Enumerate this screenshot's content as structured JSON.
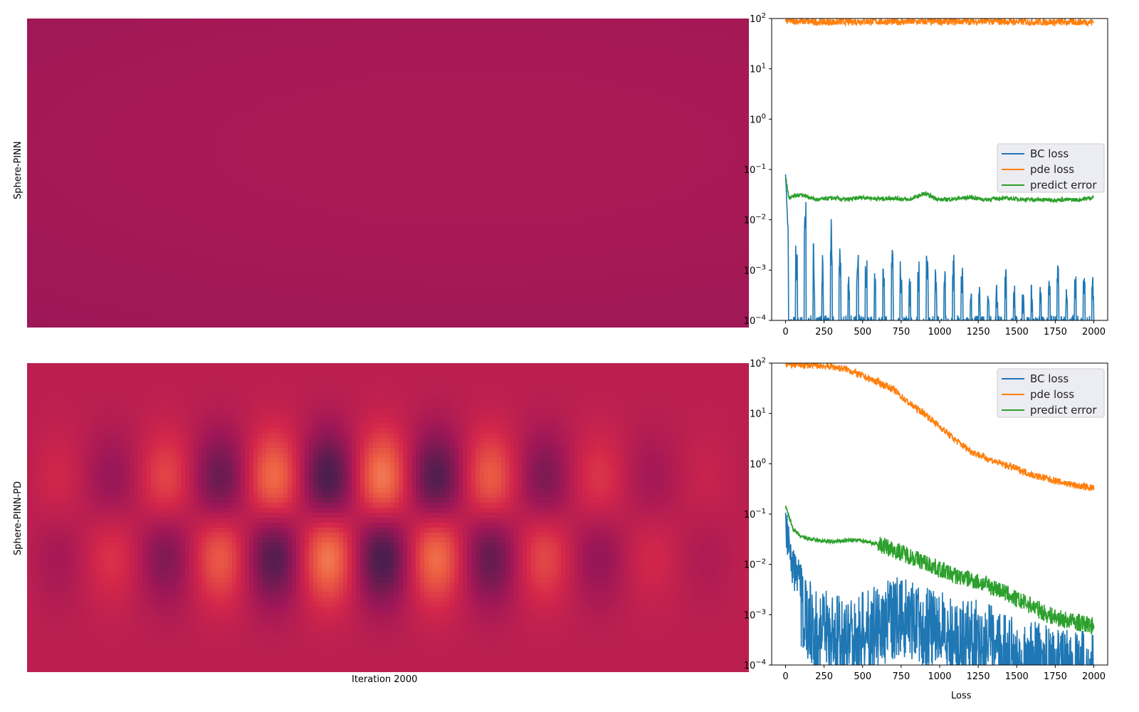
{
  "figure": {
    "row_labels": [
      "Sphere-PINN",
      "Sphere-PINN-PD"
    ],
    "heatmap_xlabel": "Iteration 2000",
    "loss_xlabel": "Loss"
  },
  "chart_data": [
    {
      "type": "heatmap",
      "title": "",
      "ylabel": "Sphere-PINN",
      "description_values": "nearly uniform field",
      "colormap": "rocket",
      "field": {
        "kind": "uniform",
        "level": 0.42,
        "variation": 0.03
      }
    },
    {
      "type": "line",
      "title": "",
      "yscale": "log",
      "xlim": [
        -90,
        2090
      ],
      "ylim": [
        0.0001,
        100
      ],
      "xticks": [
        0,
        250,
        500,
        750,
        1000,
        1250,
        1500,
        1750,
        2000
      ],
      "yticks": [
        0.0001,
        0.001,
        0.01,
        0.1,
        1,
        10,
        100
      ],
      "ytick_labels": [
        [
          "10",
          "−4"
        ],
        [
          "10",
          "−3"
        ],
        [
          "10",
          "−2"
        ],
        [
          "10",
          "−1"
        ],
        [
          "10",
          "0"
        ],
        [
          "10",
          "1"
        ],
        [
          "10",
          "2"
        ]
      ],
      "xlabel": "",
      "legend_placement": "center-right",
      "series": [
        {
          "name": "BC loss",
          "color": "#1f77b4",
          "x": [
            0,
            20,
            50,
            100,
            130,
            200,
            300,
            400,
            500,
            600,
            700,
            800,
            900,
            1000,
            1100,
            1200,
            1300,
            1400,
            1460,
            1500,
            1600,
            1700,
            1790,
            1800,
            1900,
            2000
          ],
          "y": [
            0.08,
            0.003,
            0.002,
            0.0008,
            0.009,
            0.0006,
            0.003,
            0.0004,
            0.0009,
            0.0003,
            0.0012,
            0.0003,
            0.0012,
            0.0003,
            0.0012,
            0.0003,
            0.0002,
            0.0003,
            0.0008,
            0.0002,
            0.0002,
            0.0003,
            0.0009,
            0.0002,
            0.0006,
            0.0003
          ]
        },
        {
          "name": "pde loss",
          "color": "#ff7f0e",
          "x": [
            0,
            250,
            500,
            750,
            1000,
            1250,
            1500,
            1750,
            2000
          ],
          "y": [
            90,
            85,
            88,
            86,
            87,
            88,
            86,
            85,
            85
          ]
        },
        {
          "name": "predict error",
          "color": "#2ca02c",
          "x": [
            0,
            20,
            100,
            200,
            300,
            400,
            500,
            600,
            700,
            800,
            900,
            1000,
            1100,
            1200,
            1300,
            1400,
            1500,
            1600,
            1700,
            1800,
            1900,
            2000
          ],
          "y": [
            0.075,
            0.028,
            0.032,
            0.025,
            0.027,
            0.025,
            0.028,
            0.026,
            0.027,
            0.025,
            0.033,
            0.025,
            0.026,
            0.028,
            0.025,
            0.027,
            0.026,
            0.025,
            0.025,
            0.025,
            0.025,
            0.028
          ]
        }
      ]
    },
    {
      "type": "heatmap",
      "title": "",
      "ylabel": "Sphere-PINN-PD",
      "colormap": "rocket",
      "field": {
        "kind": "checkerboard",
        "columns": 13,
        "rows": 2,
        "base_level": 0.48
      }
    },
    {
      "type": "line",
      "title": "",
      "yscale": "log",
      "xlim": [
        -90,
        2090
      ],
      "ylim": [
        0.0001,
        100
      ],
      "xticks": [
        0,
        250,
        500,
        750,
        1000,
        1250,
        1500,
        1750,
        2000
      ],
      "yticks": [
        0.0001,
        0.001,
        0.01,
        0.1,
        1,
        10,
        100
      ],
      "ytick_labels": [
        [
          "10",
          "−4"
        ],
        [
          "10",
          "−3"
        ],
        [
          "10",
          "−2"
        ],
        [
          "10",
          "−1"
        ],
        [
          "10",
          "0"
        ],
        [
          "10",
          "1"
        ],
        [
          "10",
          "2"
        ]
      ],
      "xlabel": "Loss",
      "legend_placement": "upper-right",
      "series": [
        {
          "name": "BC loss",
          "color": "#1f77b4",
          "x": [
            0,
            50,
            100,
            200,
            300,
            400,
            500,
            600,
            700,
            800,
            900,
            1000,
            1100,
            1200,
            1300,
            1400,
            1500,
            1600,
            1700,
            1800,
            1900,
            2000
          ],
          "y": [
            0.17,
            0.02,
            0.01,
            0.003,
            0.003,
            0.002,
            0.003,
            0.004,
            0.006,
            0.006,
            0.004,
            0.003,
            0.002,
            0.002,
            0.002,
            0.001,
            0.001,
            0.0008,
            0.0006,
            0.0005,
            0.0005,
            0.0005
          ]
        },
        {
          "name": "pde loss",
          "color": "#ff7f0e",
          "x": [
            0,
            100,
            200,
            300,
            400,
            500,
            600,
            700,
            800,
            900,
            1000,
            1100,
            1200,
            1300,
            1400,
            1500,
            1600,
            1700,
            1800,
            1900,
            2000
          ],
          "y": [
            95,
            92,
            90,
            85,
            75,
            55,
            42,
            30,
            16,
            10,
            5.5,
            3,
            1.8,
            1.3,
            1.0,
            0.8,
            0.6,
            0.5,
            0.42,
            0.36,
            0.33
          ]
        },
        {
          "name": "predict error",
          "color": "#2ca02c",
          "x": [
            0,
            50,
            100,
            200,
            300,
            400,
            500,
            600,
            700,
            800,
            900,
            1000,
            1100,
            1200,
            1300,
            1400,
            1500,
            1600,
            1700,
            1800,
            1900,
            2000
          ],
          "y": [
            0.14,
            0.05,
            0.035,
            0.03,
            0.028,
            0.03,
            0.03,
            0.025,
            0.02,
            0.015,
            0.011,
            0.008,
            0.006,
            0.005,
            0.004,
            0.003,
            0.002,
            0.0015,
            0.001,
            0.0008,
            0.0007,
            0.0006
          ]
        }
      ]
    }
  ]
}
